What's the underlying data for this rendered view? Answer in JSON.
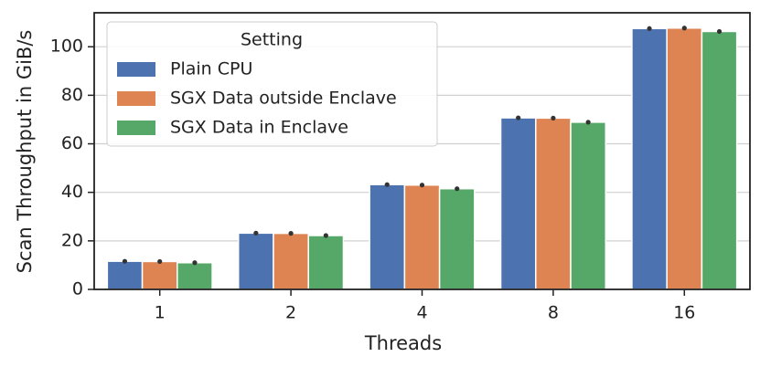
{
  "chart_data": {
    "type": "bar",
    "x_label": "Threads",
    "y_label": "Scan Throughput in GiB/s",
    "categories": [
      "1",
      "2",
      "4",
      "8",
      "16"
    ],
    "series": [
      {
        "name": "Plain CPU",
        "color": "#4c72b0",
        "values": [
          11.6,
          23.2,
          43.2,
          70.7,
          107.5
        ]
      },
      {
        "name": "SGX Data outside Enclave",
        "color": "#dd8452",
        "values": [
          11.5,
          23.1,
          43.0,
          70.6,
          107.7
        ]
      },
      {
        "name": "SGX Data in Enclave",
        "color": "#55a868",
        "values": [
          11.0,
          22.2,
          41.5,
          68.9,
          106.3
        ]
      }
    ],
    "ylim": [
      0,
      114
    ],
    "yticks": [
      0,
      20,
      40,
      60,
      80,
      100
    ],
    "grid": true,
    "legend_title": "Setting",
    "legend_position": "upper left"
  }
}
